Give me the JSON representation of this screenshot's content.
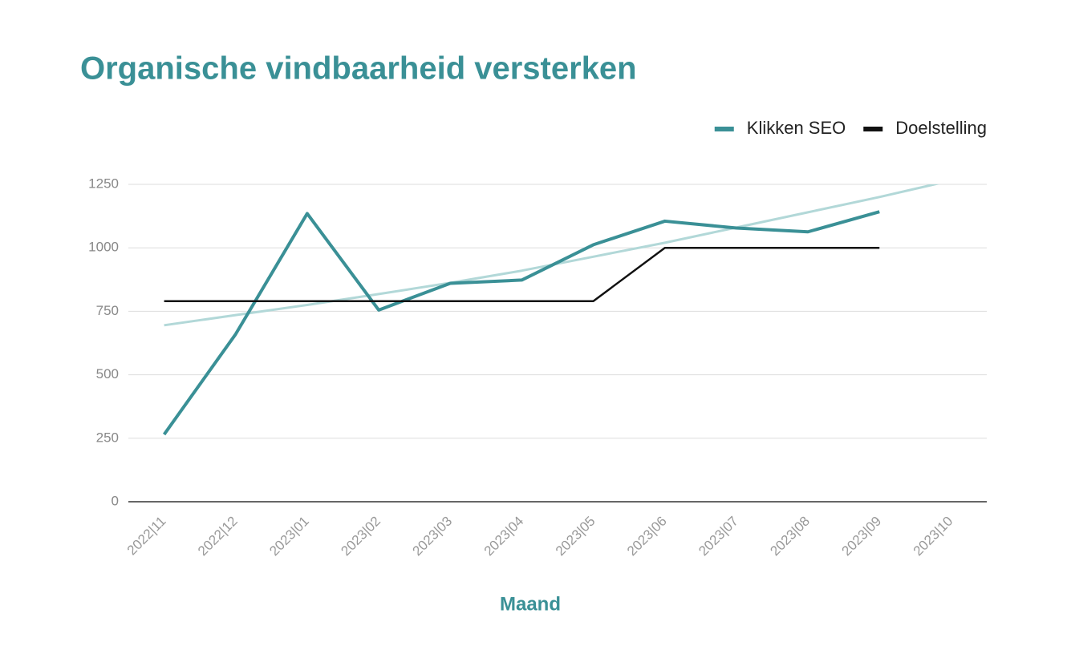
{
  "chart_data": {
    "type": "line",
    "title": "Organische vindbaarheid versterken",
    "x_label": "Maand",
    "categories": [
      "2022|11",
      "2022|12",
      "2023|01",
      "2023|02",
      "2023|03",
      "2023|04",
      "2023|05",
      "2023|06",
      "2023|07",
      "2023|08",
      "2023|09",
      "2023|10"
    ],
    "series": [
      {
        "name": "Klikken SEO",
        "color": "#3a9096",
        "values": [
          265,
          660,
          1135,
          755,
          860,
          873,
          1012,
          1105,
          1078,
          1063,
          1142,
          null
        ]
      },
      {
        "name": "Doelstelling",
        "color": "#111111",
        "values": [
          790,
          790,
          790,
          790,
          790,
          790,
          790,
          1000,
          1000,
          1000,
          1000,
          null
        ]
      }
    ],
    "trendline": {
      "color": "#b2d8d8",
      "values": [
        695,
        735,
        775,
        818,
        862,
        910,
        965,
        1020,
        1080,
        1140,
        1200,
        1265
      ]
    },
    "ylim": [
      0,
      1250
    ],
    "yticks": [
      0,
      250,
      500,
      750,
      1000,
      1250
    ],
    "grid": true,
    "legend": "top-right"
  }
}
